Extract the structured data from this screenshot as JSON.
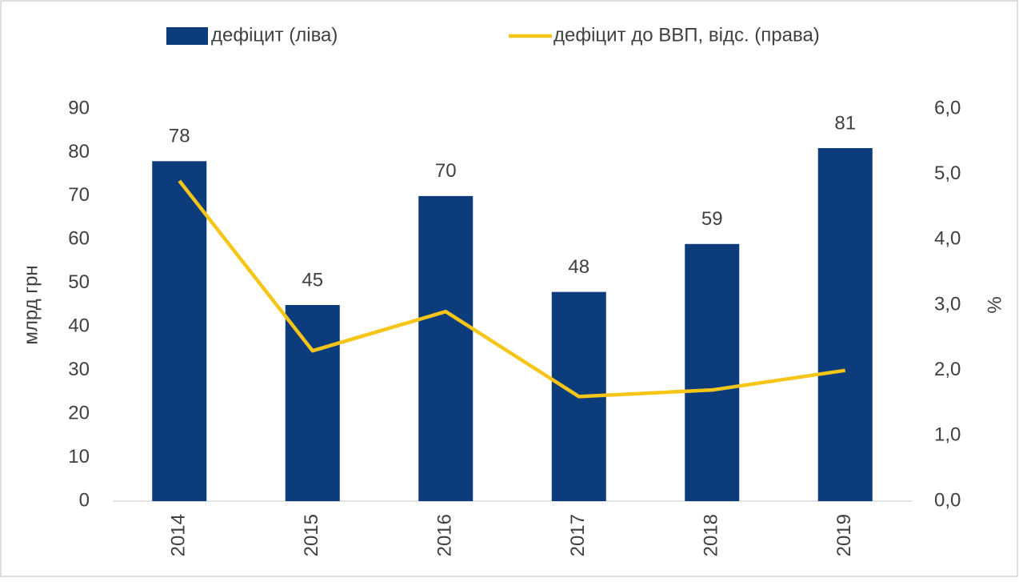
{
  "chart_data": {
    "type": "bar_line",
    "categories": [
      "2014",
      "2015",
      "2016",
      "2017",
      "2018",
      "2019"
    ],
    "series": [
      {
        "name": "дефіцит (ліва)",
        "type": "bar",
        "color": "#0c3c7c",
        "values": [
          78,
          45,
          70,
          48,
          59,
          81
        ]
      },
      {
        "name": "дефіцит до ВВП, відс. (права)",
        "type": "line",
        "axis": "y2",
        "color": "#f5c518",
        "values": [
          4.9,
          2.3,
          2.9,
          1.6,
          1.7,
          2.0
        ]
      }
    ],
    "ylabel": "млрд грн",
    "y2label": "%",
    "ylim": [
      0,
      90
    ],
    "yticks": [
      0,
      10,
      20,
      30,
      40,
      50,
      60,
      70,
      80,
      90
    ],
    "y2lim": [
      0,
      6
    ],
    "y2ticks": [
      {
        "value": 0,
        "label": "0,0"
      },
      {
        "value": 1,
        "label": "1,0"
      },
      {
        "value": 2,
        "label": "2,0"
      },
      {
        "value": 3,
        "label": "3,0"
      },
      {
        "value": 4,
        "label": "4,0"
      },
      {
        "value": 5,
        "label": "5,0"
      },
      {
        "value": 6,
        "label": "6,0"
      }
    ],
    "legend": "top",
    "grid": false
  }
}
